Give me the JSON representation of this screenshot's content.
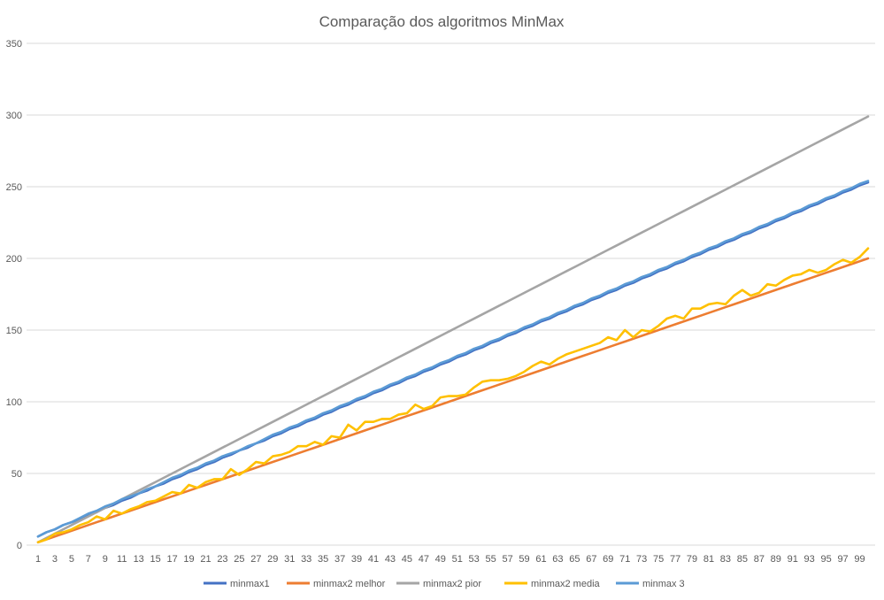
{
  "chart_data": {
    "type": "line",
    "title": "Comparação dos algoritmos MinMax",
    "xlabel": "",
    "ylabel": "",
    "ylim": [
      0,
      350
    ],
    "yticks": [
      0,
      50,
      100,
      150,
      200,
      250,
      300,
      350
    ],
    "x": [
      1,
      2,
      3,
      4,
      5,
      6,
      7,
      8,
      9,
      10,
      11,
      12,
      13,
      14,
      15,
      16,
      17,
      18,
      19,
      20,
      21,
      22,
      23,
      24,
      25,
      26,
      27,
      28,
      29,
      30,
      31,
      32,
      33,
      34,
      35,
      36,
      37,
      38,
      39,
      40,
      41,
      42,
      43,
      44,
      45,
      46,
      47,
      48,
      49,
      50,
      51,
      52,
      53,
      54,
      55,
      56,
      57,
      58,
      59,
      60,
      61,
      62,
      63,
      64,
      65,
      66,
      67,
      68,
      69,
      70,
      71,
      72,
      73,
      74,
      75,
      76,
      77,
      78,
      79,
      80,
      81,
      82,
      83,
      84,
      85,
      86,
      87,
      88,
      89,
      90,
      91,
      92,
      93,
      94,
      95,
      96,
      97,
      98,
      99,
      100
    ],
    "xtick_labels": [
      "1",
      "3",
      "5",
      "7",
      "9",
      "11",
      "13",
      "15",
      "17",
      "19",
      "21",
      "23",
      "25",
      "27",
      "29",
      "31",
      "33",
      "35",
      "37",
      "39",
      "41",
      "43",
      "45",
      "47",
      "49",
      "51",
      "53",
      "55",
      "57",
      "59",
      "61",
      "63",
      "65",
      "67",
      "69",
      "71",
      "73",
      "75",
      "77",
      "79",
      "81",
      "83",
      "85",
      "87",
      "89",
      "91",
      "93",
      "95",
      "97",
      "99"
    ],
    "grid": true,
    "legend": "bottom",
    "series": [
      {
        "name": "minmax1",
        "color": "#4472c4",
        "values": [
          6,
          9,
          11,
          14,
          16,
          18,
          21,
          23,
          26,
          28,
          31,
          33,
          36,
          38,
          41,
          43,
          46,
          48,
          51,
          53,
          56,
          58,
          61,
          63,
          66,
          68,
          71,
          73,
          76,
          78,
          81,
          83,
          86,
          88,
          91,
          93,
          96,
          98,
          101,
          103,
          106,
          108,
          111,
          113,
          116,
          118,
          121,
          123,
          126,
          128,
          131,
          133,
          136,
          138,
          141,
          143,
          146,
          148,
          151,
          153,
          156,
          158,
          161,
          163,
          166,
          168,
          171,
          173,
          176,
          178,
          181,
          183,
          186,
          188,
          191,
          193,
          196,
          198,
          201,
          203,
          206,
          208,
          211,
          213,
          216,
          218,
          221,
          223,
          226,
          228,
          231,
          233,
          236,
          238,
          241,
          243,
          246,
          248,
          251,
          253
        ]
      },
      {
        "name": "minmax2 melhor",
        "color": "#ed7d31",
        "values": [
          2,
          4,
          6,
          8,
          10,
          12,
          14,
          16,
          18,
          20,
          22,
          24,
          26,
          28,
          30,
          32,
          34,
          36,
          38,
          40,
          42,
          44,
          46,
          48,
          50,
          52,
          54,
          56,
          58,
          60,
          62,
          64,
          66,
          68,
          70,
          72,
          74,
          76,
          78,
          80,
          82,
          84,
          86,
          88,
          90,
          92,
          94,
          96,
          98,
          100,
          102,
          104,
          106,
          108,
          110,
          112,
          114,
          116,
          118,
          120,
          122,
          124,
          126,
          128,
          130,
          132,
          134,
          136,
          138,
          140,
          142,
          144,
          146,
          148,
          150,
          152,
          154,
          156,
          158,
          160,
          162,
          164,
          166,
          168,
          170,
          172,
          174,
          176,
          178,
          180,
          182,
          184,
          186,
          188,
          190,
          192,
          194,
          196,
          198,
          200
        ]
      },
      {
        "name": "minmax2 pior",
        "color": "#a5a5a5",
        "values": [
          2,
          5,
          8,
          11,
          14,
          17,
          20,
          23,
          26,
          29,
          32,
          35,
          38,
          41,
          44,
          47,
          50,
          53,
          56,
          59,
          62,
          65,
          68,
          71,
          74,
          77,
          80,
          83,
          86,
          89,
          92,
          95,
          98,
          101,
          104,
          107,
          110,
          113,
          116,
          119,
          122,
          125,
          128,
          131,
          134,
          137,
          140,
          143,
          146,
          149,
          152,
          155,
          158,
          161,
          164,
          167,
          170,
          173,
          176,
          179,
          182,
          185,
          188,
          191,
          194,
          197,
          200,
          203,
          206,
          209,
          212,
          215,
          218,
          221,
          224,
          227,
          230,
          233,
          236,
          239,
          242,
          245,
          248,
          251,
          254,
          257,
          260,
          263,
          266,
          269,
          272,
          275,
          278,
          281,
          284,
          287,
          290,
          293,
          296,
          299
        ]
      },
      {
        "name": "minmax2 media",
        "color": "#ffc000",
        "values": [
          2,
          4,
          8,
          9,
          11,
          14,
          16,
          20,
          18,
          24,
          22,
          25,
          27,
          30,
          31,
          34,
          37,
          36,
          42,
          40,
          44,
          46,
          46,
          53,
          49,
          53,
          58,
          57,
          62,
          63,
          65,
          69,
          69,
          72,
          70,
          76,
          75,
          84,
          80,
          86,
          86,
          88,
          88,
          91,
          92,
          98,
          95,
          97,
          103,
          104,
          104,
          105,
          110,
          114,
          115,
          115,
          116,
          118,
          121,
          125,
          128,
          126,
          130,
          133,
          135,
          137,
          139,
          141,
          145,
          143,
          150,
          145,
          150,
          149,
          153,
          158,
          160,
          158,
          165,
          165,
          168,
          169,
          168,
          174,
          178,
          174,
          176,
          182,
          181,
          185,
          188,
          189,
          192,
          190,
          192,
          196,
          199,
          197,
          201,
          207
        ]
      },
      {
        "name": "minmax 3",
        "color": "#5b9bd5",
        "values": [
          6,
          9,
          11,
          14,
          16,
          19,
          22,
          24,
          27,
          29,
          32,
          34,
          36,
          39,
          41,
          44,
          47,
          49,
          52,
          54,
          57,
          59,
          62,
          64,
          66,
          69,
          71,
          74,
          77,
          79,
          82,
          84,
          87,
          89,
          92,
          94,
          97,
          99,
          102,
          104,
          107,
          109,
          112,
          114,
          117,
          119,
          122,
          124,
          127,
          129,
          132,
          134,
          137,
          139,
          142,
          144,
          147,
          149,
          152,
          154,
          157,
          159,
          162,
          164,
          167,
          169,
          172,
          174,
          177,
          179,
          182,
          184,
          187,
          189,
          192,
          194,
          197,
          199,
          202,
          204,
          207,
          209,
          212,
          214,
          217,
          219,
          222,
          224,
          227,
          229,
          232,
          234,
          237,
          239,
          242,
          244,
          247,
          249,
          252,
          254
        ]
      }
    ]
  }
}
